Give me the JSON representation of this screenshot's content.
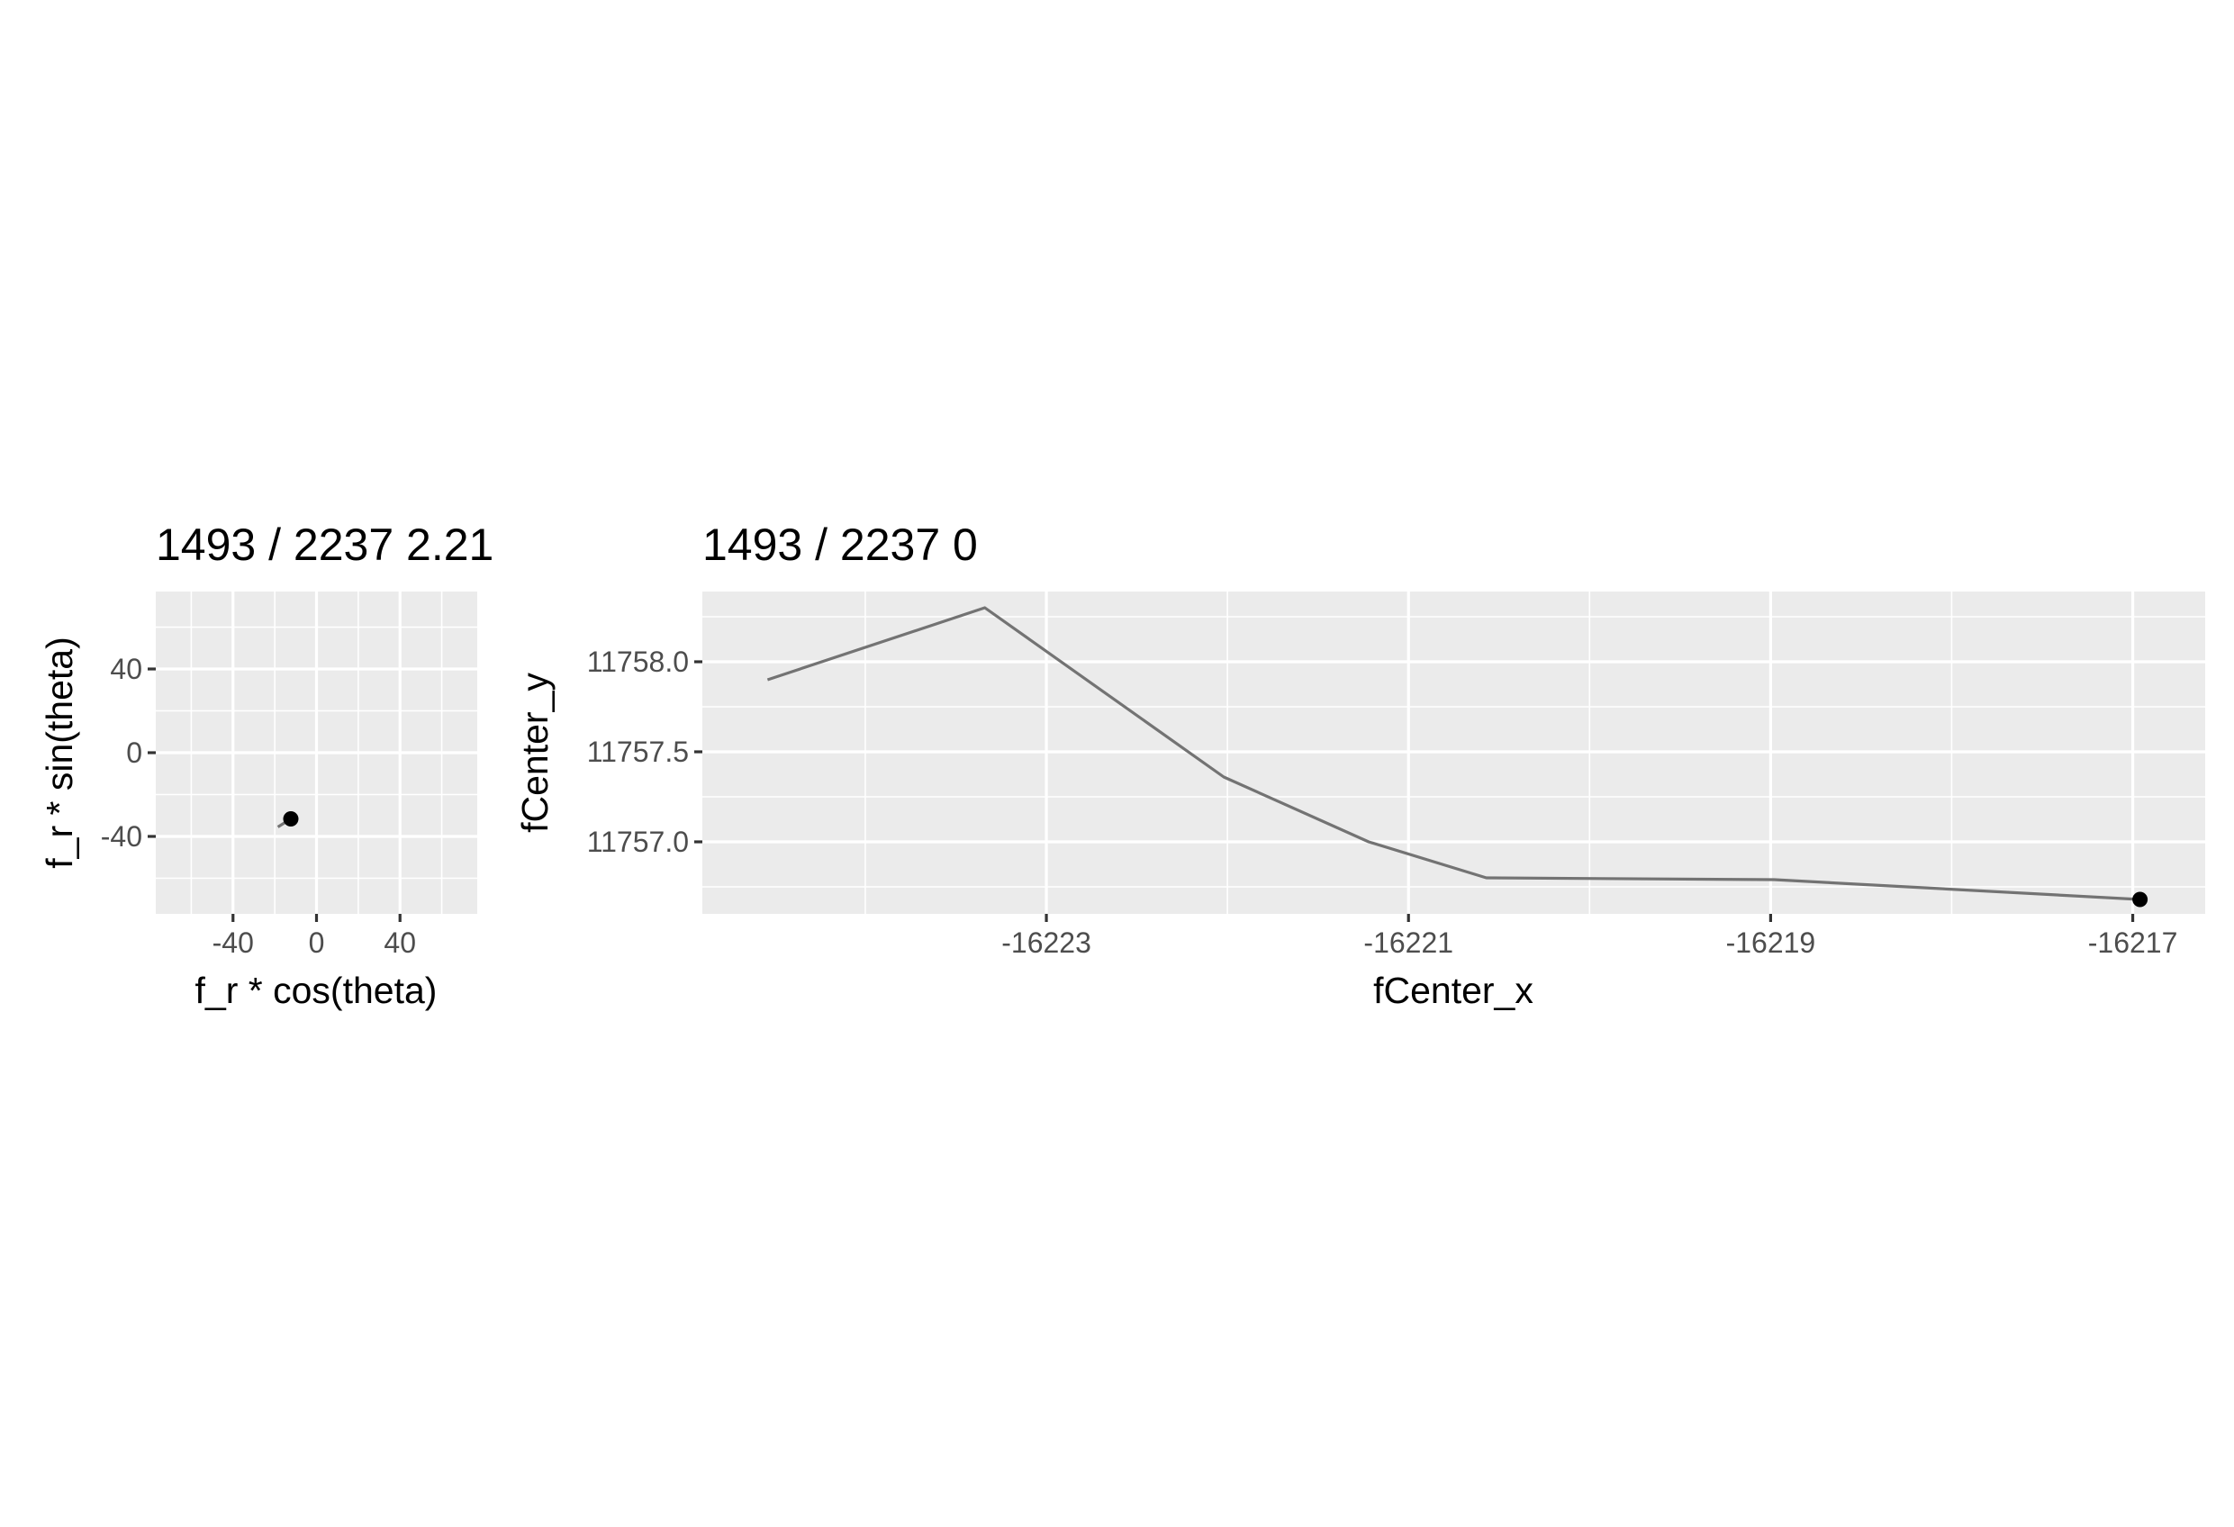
{
  "chart_data": [
    {
      "type": "line",
      "title": "1493 / 2237 2.21",
      "xlabel": "f_r * cos(theta)",
      "ylabel": "f_r * sin(theta)",
      "xlim": [
        -77,
        77
      ],
      "ylim": [
        -77,
        77
      ],
      "x_ticks": [
        -40,
        0,
        40
      ],
      "x_tick_labels": [
        "-40",
        "0",
        "40"
      ],
      "y_ticks": [
        -40,
        0,
        40
      ],
      "y_tick_labels": [
        "-40",
        "0",
        "40"
      ],
      "grid": true,
      "series": [
        {
          "x": [
            -18.5,
            -12.3
          ],
          "y": [
            -35.5,
            -31.6
          ],
          "color": "#737373"
        }
      ],
      "points": [
        {
          "x": -12.3,
          "y": -31.6,
          "color": "#000000"
        }
      ]
    },
    {
      "type": "line",
      "title": "1493 / 2237 0",
      "xlabel": "fCenter_x",
      "ylabel": "fCenter_y",
      "xlim": [
        -16224.9,
        -16216.6
      ],
      "ylim": [
        11756.6,
        11758.39
      ],
      "x_ticks": [
        -16223,
        -16221,
        -16219,
        -16217
      ],
      "x_tick_labels": [
        "-16223",
        "-16221",
        "-16219",
        "-16217"
      ],
      "y_ticks": [
        11757.0,
        11757.5,
        11758.0
      ],
      "y_tick_labels": [
        "11757.0",
        "11757.5",
        "11758.0"
      ],
      "grid": true,
      "series": [
        {
          "x": [
            -16224.54,
            -16223.34,
            -16222.02,
            -16221.22,
            -16220.57,
            -16218.98,
            -16216.96
          ],
          "y": [
            11757.9,
            11758.3,
            11757.36,
            11757.0,
            11756.8,
            11756.79,
            11756.68
          ],
          "color": "#737373"
        }
      ],
      "points": [
        {
          "x": -16216.96,
          "y": 11756.68,
          "color": "#000000"
        }
      ]
    }
  ]
}
